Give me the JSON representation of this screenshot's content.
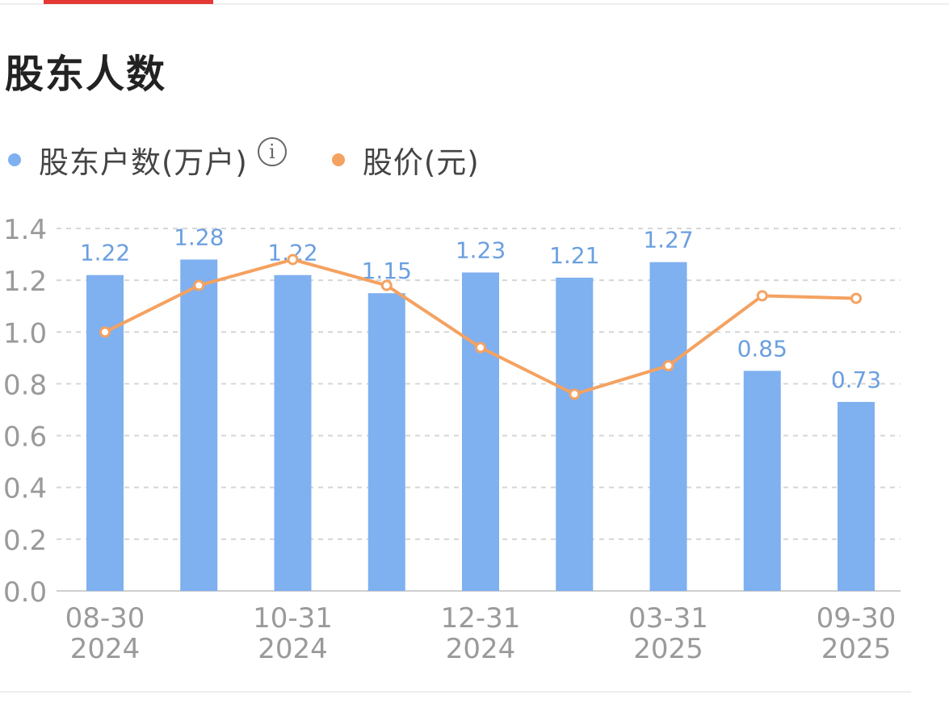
{
  "header": {
    "tab_indicator_color": "#e53935"
  },
  "title": "股东人数",
  "legend": {
    "holders": {
      "label": "股东户数(万户)",
      "color": "#7fb0f0",
      "info_icon": "info-circle-icon",
      "info_glyph": "i"
    },
    "price": {
      "label": "股价(元)",
      "color": "#f4a261"
    }
  },
  "chart_data": {
    "type": "bar",
    "categories": [
      "08-30\n2024",
      "",
      "10-31\n2024",
      "",
      "12-31\n2024",
      "",
      "03-31\n2025",
      "",
      "09-30\n2025"
    ],
    "series": [
      {
        "name": "股东户数(万户)",
        "type": "bar",
        "color": "#7fb0f0",
        "values": [
          1.22,
          1.28,
          1.22,
          1.15,
          1.23,
          1.21,
          1.27,
          0.85,
          0.73
        ],
        "labels": [
          "1.22",
          "1.28",
          "1.22",
          "1.15",
          "1.23",
          "1.21",
          "1.27",
          "0.85",
          "0.73"
        ]
      },
      {
        "name": "股价(元)",
        "type": "line",
        "color": "#f4a261",
        "values": [
          1.0,
          1.18,
          1.28,
          1.18,
          0.94,
          0.76,
          0.87,
          1.14,
          1.13
        ]
      }
    ],
    "y_ticks": [
      "0.0",
      "0.2",
      "0.4",
      "0.6",
      "0.8",
      "1.0",
      "1.2",
      "1.4"
    ],
    "ylim": [
      0,
      1.4
    ],
    "grid": true,
    "legend_position": "top-left"
  }
}
